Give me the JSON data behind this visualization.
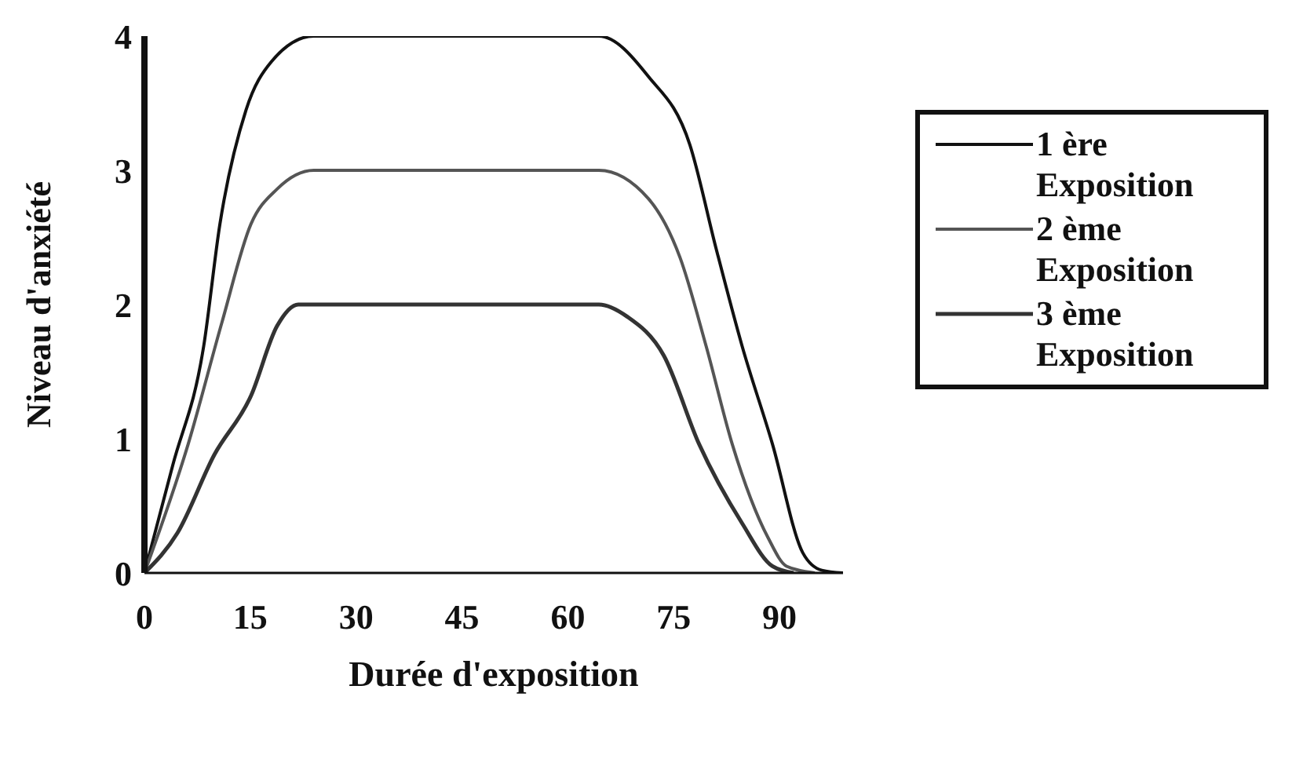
{
  "chart_data": {
    "type": "line",
    "xlabel": "Durée d'exposition",
    "ylabel": "Niveau d'anxiété",
    "xlim": [
      0,
      99
    ],
    "xticks": [
      0,
      15,
      30,
      45,
      60,
      75,
      90
    ],
    "ylim": [
      0,
      4
    ],
    "yticks": [
      0,
      1,
      2,
      3,
      4
    ],
    "legend": "right",
    "marker": "none",
    "line_style": "solid",
    "series": [
      {
        "name": "1 ère Exposition",
        "color": "#111111",
        "x": [
          0,
          4,
          8.4,
          10.7,
          14.4,
          18,
          24,
          44,
          64.4,
          71.4,
          77.3,
          81,
          84.7,
          89,
          93.3,
          96,
          99
        ],
        "values": [
          0,
          0.8,
          1.69,
          2.6,
          3.45,
          3.81,
          4,
          4,
          4,
          3.7,
          3.19,
          2.42,
          1.69,
          0.96,
          0.15,
          0.02,
          0
        ]
      },
      {
        "name": "2 ème Exposition",
        "color": "#555555",
        "x": [
          0,
          6.2,
          11,
          15.1,
          18.8,
          24,
          44,
          64.4,
          71.4,
          75.9,
          79.6,
          83.3,
          88.4,
          91,
          95
        ],
        "values": [
          0,
          0.96,
          1.87,
          2.6,
          2.86,
          3,
          3,
          3,
          2.79,
          2.35,
          1.69,
          0.96,
          0.26,
          0.05,
          0
        ]
      },
      {
        "name": "3 ème Exposition",
        "color": "#333333",
        "x": [
          0,
          4.7,
          9.9,
          15.1,
          18.8,
          21.8,
          24,
          44,
          64.4,
          68.4,
          73.6,
          78.6,
          84.7,
          89,
          92
        ],
        "values": [
          0,
          0.3,
          0.88,
          1.32,
          1.84,
          2,
          2,
          2,
          2,
          1.91,
          1.62,
          0.96,
          0.37,
          0.05,
          0
        ]
      }
    ]
  }
}
